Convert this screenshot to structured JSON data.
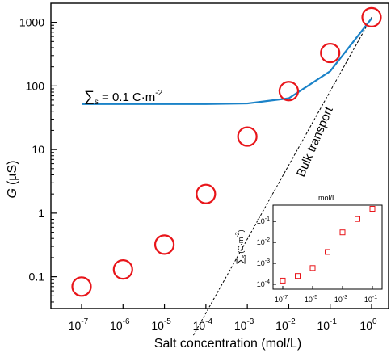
{
  "chart_data": [
    {
      "type": "scatter",
      "xlabel": "Salt concentration (mol/L)",
      "ylabel_var": "G",
      "ylabel_unit": "(µS)",
      "x_scale": "log",
      "y_scale": "log",
      "xlim": [
        1e-07,
        1
      ],
      "ylim_decades": [
        -1.5,
        3.3
      ],
      "x_ticks": [
        {
          "exp": "-7",
          "v": 1e-07
        },
        {
          "exp": "-6",
          "v": 1e-06
        },
        {
          "exp": "-5",
          "v": 1e-05
        },
        {
          "exp": "-4",
          "v": 0.0001
        },
        {
          "exp": "-3",
          "v": 0.001
        },
        {
          "exp": "-2",
          "v": 0.01
        },
        {
          "exp": "-1",
          "v": 0.1
        },
        {
          "exp": "0",
          "v": 1
        }
      ],
      "x_tick_base": "10",
      "y_ticks": [
        {
          "label": "0.1",
          "v": 0.1
        },
        {
          "label": "1",
          "v": 1
        },
        {
          "label": "10",
          "v": 10
        },
        {
          "label": "100",
          "v": 100
        },
        {
          "label": "1000",
          "v": 1000
        }
      ],
      "series": [
        {
          "kind": "markers",
          "color": "#e8151a",
          "points": [
            {
              "x": 1e-07,
              "y": 0.07
            },
            {
              "x": 1e-06,
              "y": 0.13
            },
            {
              "x": 1e-05,
              "y": 0.32
            },
            {
              "x": 0.0001,
              "y": 2.0
            },
            {
              "x": 0.001,
              "y": 16
            },
            {
              "x": 0.01,
              "y": 83
            },
            {
              "x": 0.1,
              "y": 330
            },
            {
              "x": 1,
              "y": 1200
            }
          ]
        },
        {
          "kind": "line",
          "color": "#1a82c8",
          "label_sum": "∑",
          "label_sub": "s",
          "label_value": " = 0.1 C·m",
          "label_exp": "-2",
          "points": [
            {
              "x": 1e-07,
              "y": 52
            },
            {
              "x": 1e-06,
              "y": 52
            },
            {
              "x": 1e-05,
              "y": 52
            },
            {
              "x": 0.0001,
              "y": 52
            },
            {
              "x": 0.001,
              "y": 53
            },
            {
              "x": 0.01,
              "y": 64
            },
            {
              "x": 0.1,
              "y": 170
            },
            {
              "x": 1,
              "y": 1150
            }
          ]
        },
        {
          "kind": "dashed-line",
          "color": "#000000",
          "label": "Bulk transport",
          "points": [
            {
              "x": 5e-05,
              "y": 0.012
            },
            {
              "x": 1,
              "y": 1200
            }
          ]
        }
      ]
    },
    {
      "type": "scatter",
      "title": "mol/L",
      "ylabel_sum": "∑",
      "ylabel_sub": "s",
      "ylabel_unit": "(C·m",
      "ylabel_exp": "-2",
      "ylabel_close": ")",
      "x_scale": "log",
      "y_scale": "log",
      "xlim": [
        1e-07,
        0.1
      ],
      "ylim": [
        0.0001,
        0.5
      ],
      "x_ticks": [
        {
          "exp": "-7",
          "v": 1e-07
        },
        {
          "exp": "-5",
          "v": 1e-05
        },
        {
          "exp": "-3",
          "v": 0.001
        },
        {
          "exp": "-1",
          "v": 0.1
        }
      ],
      "y_ticks": [
        {
          "exp": "-4",
          "v": 0.0001
        },
        {
          "exp": "-3",
          "v": 0.001
        },
        {
          "exp": "-2",
          "v": 0.01
        },
        {
          "exp": "-1",
          "v": 0.1
        }
      ],
      "tick_base": "10",
      "series": [
        {
          "kind": "square-markers",
          "color": "#e8151a",
          "points": [
            {
              "x": 1e-07,
              "y": 0.00015
            },
            {
              "x": 1e-06,
              "y": 0.00025
            },
            {
              "x": 1e-05,
              "y": 0.0006
            },
            {
              "x": 0.0001,
              "y": 0.0035
            },
            {
              "x": 0.001,
              "y": 0.03
            },
            {
              "x": 0.01,
              "y": 0.13
            },
            {
              "x": 0.1,
              "y": 0.4
            }
          ]
        }
      ]
    }
  ]
}
